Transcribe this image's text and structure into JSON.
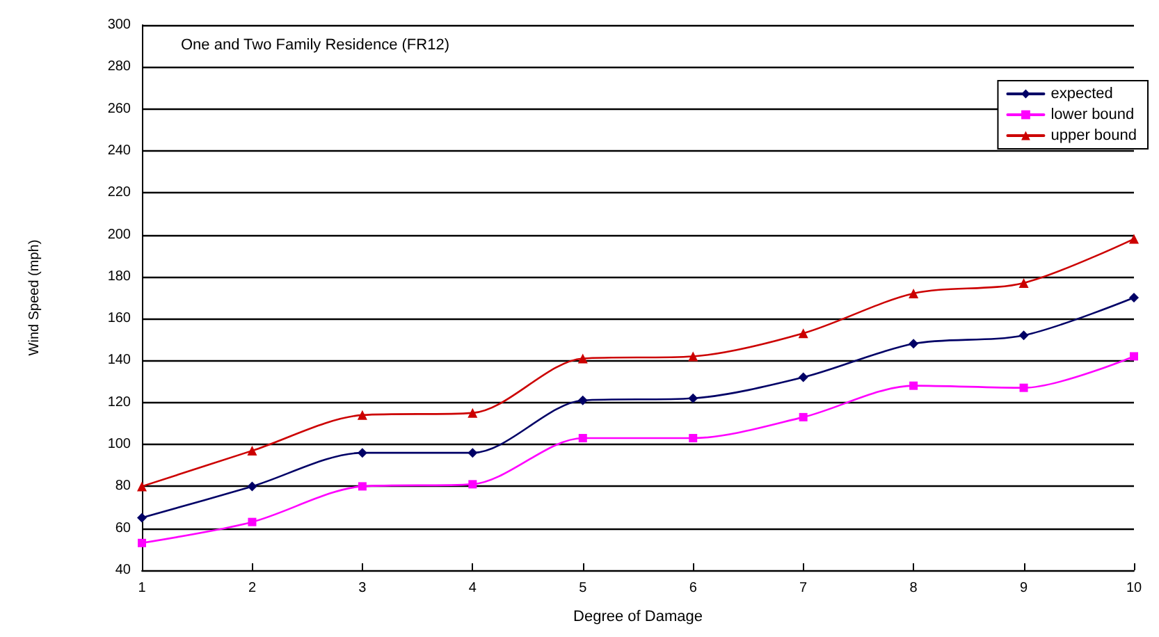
{
  "chart_data": {
    "type": "line",
    "title": "One and Two Family Residence (FR12)",
    "xlabel": "Degree of Damage",
    "ylabel": "Wind Speed (mph)",
    "x": [
      1,
      2,
      3,
      4,
      5,
      6,
      7,
      8,
      9,
      10
    ],
    "xlim": [
      1,
      10
    ],
    "xticks": [
      1,
      2,
      3,
      4,
      5,
      6,
      7,
      8,
      9,
      10
    ],
    "ylim": [
      40,
      300
    ],
    "yticks": [
      40,
      60,
      80,
      100,
      120,
      140,
      160,
      180,
      200,
      220,
      240,
      260,
      280,
      300
    ],
    "grid": "y",
    "legend": "top right",
    "series": [
      {
        "name": "expected",
        "color": "#000066",
        "marker": "diamond",
        "values": [
          65,
          80,
          96,
          96,
          121,
          122,
          132,
          148,
          152,
          170
        ]
      },
      {
        "name": "lower bound",
        "color": "#ff00ff",
        "marker": "square",
        "values": [
          53,
          63,
          80,
          81,
          103,
          103,
          113,
          128,
          127,
          142
        ]
      },
      {
        "name": "upper bound",
        "color": "#cc0000",
        "marker": "triangle",
        "values": [
          80,
          97,
          114,
          115,
          141,
          142,
          153,
          172,
          177,
          198
        ]
      }
    ]
  }
}
